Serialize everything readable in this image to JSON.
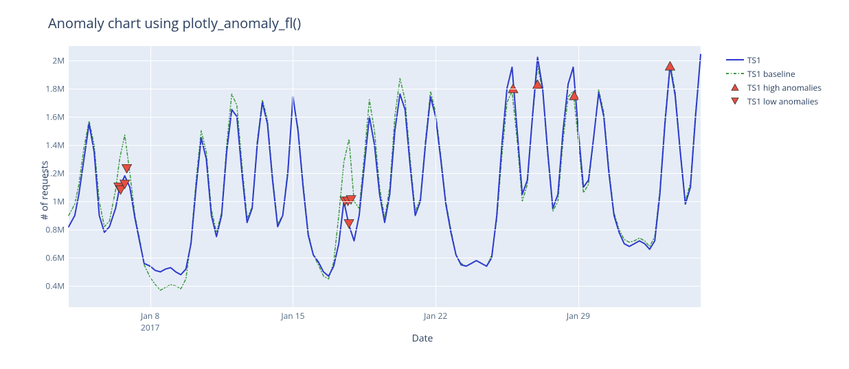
{
  "title": "Anomaly chart using plotly_anomaly_fl()",
  "xlabel": "Date",
  "ylabel": "# of requests",
  "plot_bg": "#e5ecf6",
  "grid_color": "#ffffff",
  "tick_color": "#506784",
  "title_color": "#2a3f5f",
  "title_fontsize": 20,
  "label_fontsize": 14,
  "tick_fontsize": 12,
  "x_axis": {
    "min": 4,
    "max": 35,
    "ticks": [
      {
        "day": 8,
        "label": "Jan 8",
        "year": "2017"
      },
      {
        "day": 15,
        "label": "Jan 15",
        "year": ""
      },
      {
        "day": 22,
        "label": "Jan 22",
        "year": ""
      },
      {
        "day": 29,
        "label": "Jan 29",
        "year": ""
      }
    ]
  },
  "y_axis": {
    "min": 250000,
    "max": 2100000,
    "ticks": [
      {
        "v": 400000,
        "label": "0.4M"
      },
      {
        "v": 600000,
        "label": "0.6M"
      },
      {
        "v": 800000,
        "label": "0.8M"
      },
      {
        "v": 1000000,
        "label": "1M"
      },
      {
        "v": 1200000,
        "label": "1.2M"
      },
      {
        "v": 1400000,
        "label": "1.4M"
      },
      {
        "v": 1600000,
        "label": "1.6M"
      },
      {
        "v": 1800000,
        "label": "1.8M"
      },
      {
        "v": 2000000,
        "label": "2M"
      }
    ]
  },
  "legend": {
    "items": [
      {
        "key": "ts1",
        "label": "TS1"
      },
      {
        "key": "baseline",
        "label": "TS1 baseline"
      },
      {
        "key": "high",
        "label": "TS1 high anomalies"
      },
      {
        "key": "low",
        "label": "TS1 low anomalies"
      }
    ]
  },
  "series": {
    "ts1": {
      "type": "line",
      "color": "#2e3bcc",
      "stroke_width": 2,
      "dash": "solid",
      "data": [
        [
          4.0,
          820000
        ],
        [
          4.3,
          900000
        ],
        [
          4.5,
          1050000
        ],
        [
          4.75,
          1300000
        ],
        [
          5.0,
          1550000
        ],
        [
          5.25,
          1350000
        ],
        [
          5.5,
          900000
        ],
        [
          5.75,
          780000
        ],
        [
          6.0,
          820000
        ],
        [
          6.3,
          950000
        ],
        [
          6.5,
          1100000
        ],
        [
          6.75,
          1180000
        ],
        [
          7.0,
          1100000
        ],
        [
          7.25,
          880000
        ],
        [
          7.5,
          700000
        ],
        [
          7.7,
          560000
        ],
        [
          8.0,
          540000
        ],
        [
          8.25,
          510000
        ],
        [
          8.5,
          500000
        ],
        [
          8.75,
          520000
        ],
        [
          9.0,
          530000
        ],
        [
          9.25,
          500000
        ],
        [
          9.5,
          480000
        ],
        [
          9.75,
          520000
        ],
        [
          10.0,
          700000
        ],
        [
          10.25,
          1100000
        ],
        [
          10.5,
          1450000
        ],
        [
          10.75,
          1300000
        ],
        [
          11.0,
          900000
        ],
        [
          11.25,
          750000
        ],
        [
          11.5,
          900000
        ],
        [
          11.75,
          1350000
        ],
        [
          12.0,
          1650000
        ],
        [
          12.25,
          1600000
        ],
        [
          12.5,
          1200000
        ],
        [
          12.75,
          850000
        ],
        [
          13.0,
          950000
        ],
        [
          13.25,
          1400000
        ],
        [
          13.5,
          1700000
        ],
        [
          13.75,
          1550000
        ],
        [
          14.0,
          1150000
        ],
        [
          14.25,
          820000
        ],
        [
          14.5,
          900000
        ],
        [
          14.75,
          1200000
        ],
        [
          15.0,
          1740000
        ],
        [
          15.25,
          1500000
        ],
        [
          15.5,
          1100000
        ],
        [
          15.75,
          760000
        ],
        [
          16.0,
          620000
        ],
        [
          16.25,
          570000
        ],
        [
          16.5,
          500000
        ],
        [
          16.75,
          470000
        ],
        [
          17.0,
          540000
        ],
        [
          17.25,
          700000
        ],
        [
          17.5,
          1000000
        ],
        [
          17.75,
          830000
        ],
        [
          18.0,
          720000
        ],
        [
          18.25,
          900000
        ],
        [
          18.5,
          1250000
        ],
        [
          18.75,
          1600000
        ],
        [
          19.0,
          1400000
        ],
        [
          19.25,
          1050000
        ],
        [
          19.5,
          850000
        ],
        [
          19.75,
          1050000
        ],
        [
          20.0,
          1500000
        ],
        [
          20.25,
          1760000
        ],
        [
          20.5,
          1650000
        ],
        [
          20.75,
          1250000
        ],
        [
          21.0,
          900000
        ],
        [
          21.25,
          1000000
        ],
        [
          21.5,
          1400000
        ],
        [
          21.75,
          1740000
        ],
        [
          22.0,
          1600000
        ],
        [
          22.25,
          1300000
        ],
        [
          22.5,
          980000
        ],
        [
          22.75,
          780000
        ],
        [
          23.0,
          620000
        ],
        [
          23.25,
          550000
        ],
        [
          23.5,
          540000
        ],
        [
          23.75,
          560000
        ],
        [
          24.0,
          580000
        ],
        [
          24.25,
          560000
        ],
        [
          24.5,
          540000
        ],
        [
          24.75,
          600000
        ],
        [
          25.0,
          900000
        ],
        [
          25.25,
          1400000
        ],
        [
          25.5,
          1800000
        ],
        [
          25.75,
          1950000
        ],
        [
          26.0,
          1500000
        ],
        [
          26.25,
          1050000
        ],
        [
          26.5,
          1150000
        ],
        [
          26.75,
          1600000
        ],
        [
          27.0,
          2020000
        ],
        [
          27.25,
          1800000
        ],
        [
          27.5,
          1350000
        ],
        [
          27.75,
          950000
        ],
        [
          28.0,
          1050000
        ],
        [
          28.25,
          1500000
        ],
        [
          28.5,
          1830000
        ],
        [
          28.75,
          1950000
        ],
        [
          29.0,
          1500000
        ],
        [
          29.25,
          1100000
        ],
        [
          29.5,
          1150000
        ],
        [
          29.75,
          1450000
        ],
        [
          30.0,
          1770000
        ],
        [
          30.25,
          1600000
        ],
        [
          30.5,
          1200000
        ],
        [
          30.75,
          900000
        ],
        [
          31.0,
          780000
        ],
        [
          31.25,
          700000
        ],
        [
          31.5,
          680000
        ],
        [
          31.75,
          700000
        ],
        [
          32.0,
          720000
        ],
        [
          32.25,
          700000
        ],
        [
          32.5,
          660000
        ],
        [
          32.75,
          720000
        ],
        [
          33.0,
          1050000
        ],
        [
          33.25,
          1550000
        ],
        [
          33.5,
          1960000
        ],
        [
          33.75,
          1750000
        ],
        [
          34.0,
          1350000
        ],
        [
          34.25,
          980000
        ],
        [
          34.5,
          1100000
        ],
        [
          34.75,
          1600000
        ],
        [
          35.0,
          2040000
        ]
      ]
    },
    "baseline": {
      "type": "line",
      "color": "#3d9940",
      "stroke_width": 1.5,
      "dash": "4 3 1 3",
      "data": [
        [
          4.0,
          900000
        ],
        [
          4.3,
          980000
        ],
        [
          4.5,
          1120000
        ],
        [
          4.75,
          1380000
        ],
        [
          5.0,
          1570000
        ],
        [
          5.25,
          1400000
        ],
        [
          5.5,
          1000000
        ],
        [
          5.75,
          820000
        ],
        [
          6.0,
          860000
        ],
        [
          6.3,
          1080000
        ],
        [
          6.5,
          1300000
        ],
        [
          6.75,
          1470000
        ],
        [
          7.0,
          1200000
        ],
        [
          7.25,
          900000
        ],
        [
          7.5,
          720000
        ],
        [
          7.7,
          550000
        ],
        [
          8.0,
          460000
        ],
        [
          8.25,
          410000
        ],
        [
          8.5,
          370000
        ],
        [
          8.75,
          390000
        ],
        [
          9.0,
          410000
        ],
        [
          9.25,
          400000
        ],
        [
          9.5,
          380000
        ],
        [
          9.75,
          450000
        ],
        [
          10.0,
          720000
        ],
        [
          10.25,
          1150000
        ],
        [
          10.5,
          1500000
        ],
        [
          10.75,
          1350000
        ],
        [
          11.0,
          940000
        ],
        [
          11.25,
          780000
        ],
        [
          11.5,
          920000
        ],
        [
          11.75,
          1400000
        ],
        [
          12.0,
          1760000
        ],
        [
          12.25,
          1680000
        ],
        [
          12.5,
          1260000
        ],
        [
          12.75,
          880000
        ],
        [
          13.0,
          960000
        ],
        [
          13.25,
          1430000
        ],
        [
          13.5,
          1720000
        ],
        [
          13.75,
          1580000
        ],
        [
          14.0,
          1180000
        ],
        [
          14.25,
          840000
        ],
        [
          14.5,
          900000
        ],
        [
          14.75,
          1230000
        ],
        [
          15.0,
          1730000
        ],
        [
          15.25,
          1520000
        ],
        [
          15.5,
          1130000
        ],
        [
          15.75,
          780000
        ],
        [
          16.0,
          620000
        ],
        [
          16.25,
          550000
        ],
        [
          16.5,
          470000
        ],
        [
          16.75,
          450000
        ],
        [
          17.0,
          570000
        ],
        [
          17.25,
          900000
        ],
        [
          17.5,
          1280000
        ],
        [
          17.75,
          1440000
        ],
        [
          18.0,
          1000000
        ],
        [
          18.25,
          950000
        ],
        [
          18.5,
          1320000
        ],
        [
          18.75,
          1720000
        ],
        [
          19.0,
          1500000
        ],
        [
          19.25,
          1100000
        ],
        [
          19.5,
          880000
        ],
        [
          19.75,
          1100000
        ],
        [
          20.0,
          1600000
        ],
        [
          20.25,
          1870000
        ],
        [
          20.5,
          1720000
        ],
        [
          20.75,
          1300000
        ],
        [
          21.0,
          930000
        ],
        [
          21.25,
          1020000
        ],
        [
          21.5,
          1430000
        ],
        [
          21.75,
          1780000
        ],
        [
          22.0,
          1630000
        ],
        [
          22.25,
          1330000
        ],
        [
          22.5,
          1000000
        ],
        [
          22.75,
          800000
        ],
        [
          23.0,
          620000
        ],
        [
          23.25,
          560000
        ],
        [
          23.5,
          540000
        ],
        [
          23.75,
          560000
        ],
        [
          24.0,
          580000
        ],
        [
          24.25,
          560000
        ],
        [
          24.5,
          540000
        ],
        [
          24.75,
          620000
        ],
        [
          25.0,
          870000
        ],
        [
          25.25,
          1320000
        ],
        [
          25.5,
          1700000
        ],
        [
          25.75,
          1780000
        ],
        [
          26.0,
          1430000
        ],
        [
          26.25,
          1000000
        ],
        [
          26.5,
          1120000
        ],
        [
          26.75,
          1580000
        ],
        [
          27.0,
          1960000
        ],
        [
          27.25,
          1780000
        ],
        [
          27.5,
          1320000
        ],
        [
          27.75,
          930000
        ],
        [
          28.0,
          1000000
        ],
        [
          28.25,
          1430000
        ],
        [
          28.5,
          1740000
        ],
        [
          28.75,
          1780000
        ],
        [
          29.0,
          1430000
        ],
        [
          29.25,
          1060000
        ],
        [
          29.5,
          1120000
        ],
        [
          29.75,
          1440000
        ],
        [
          30.0,
          1790000
        ],
        [
          30.25,
          1630000
        ],
        [
          30.5,
          1230000
        ],
        [
          30.75,
          920000
        ],
        [
          31.0,
          800000
        ],
        [
          31.25,
          730000
        ],
        [
          31.5,
          710000
        ],
        [
          31.75,
          720000
        ],
        [
          32.0,
          740000
        ],
        [
          32.25,
          720000
        ],
        [
          32.5,
          680000
        ],
        [
          32.75,
          750000
        ],
        [
          33.0,
          1080000
        ],
        [
          33.25,
          1580000
        ],
        [
          33.5,
          1980000
        ],
        [
          33.75,
          1780000
        ],
        [
          34.0,
          1370000
        ],
        [
          34.25,
          1000000
        ],
        [
          34.5,
          1130000
        ],
        [
          34.75,
          1630000
        ],
        [
          35.0,
          2030000
        ]
      ]
    },
    "high": {
      "type": "scatter",
      "marker": "triangle-up",
      "color": "#e84e40",
      "stroke": "#333333",
      "size": 14,
      "data": [
        [
          25.8,
          1800000
        ],
        [
          27.0,
          1830000
        ],
        [
          28.8,
          1750000
        ],
        [
          33.5,
          1960000
        ]
      ]
    },
    "low": {
      "type": "scatter",
      "marker": "triangle-down",
      "color": "#e84e40",
      "stroke": "#333333",
      "size": 14,
      "data": [
        [
          6.45,
          1100000
        ],
        [
          6.55,
          1080000
        ],
        [
          6.75,
          1120000
        ],
        [
          6.85,
          1230000
        ],
        [
          17.55,
          1000000
        ],
        [
          17.7,
          1000000
        ],
        [
          17.85,
          1010000
        ],
        [
          17.75,
          840000
        ]
      ]
    }
  }
}
